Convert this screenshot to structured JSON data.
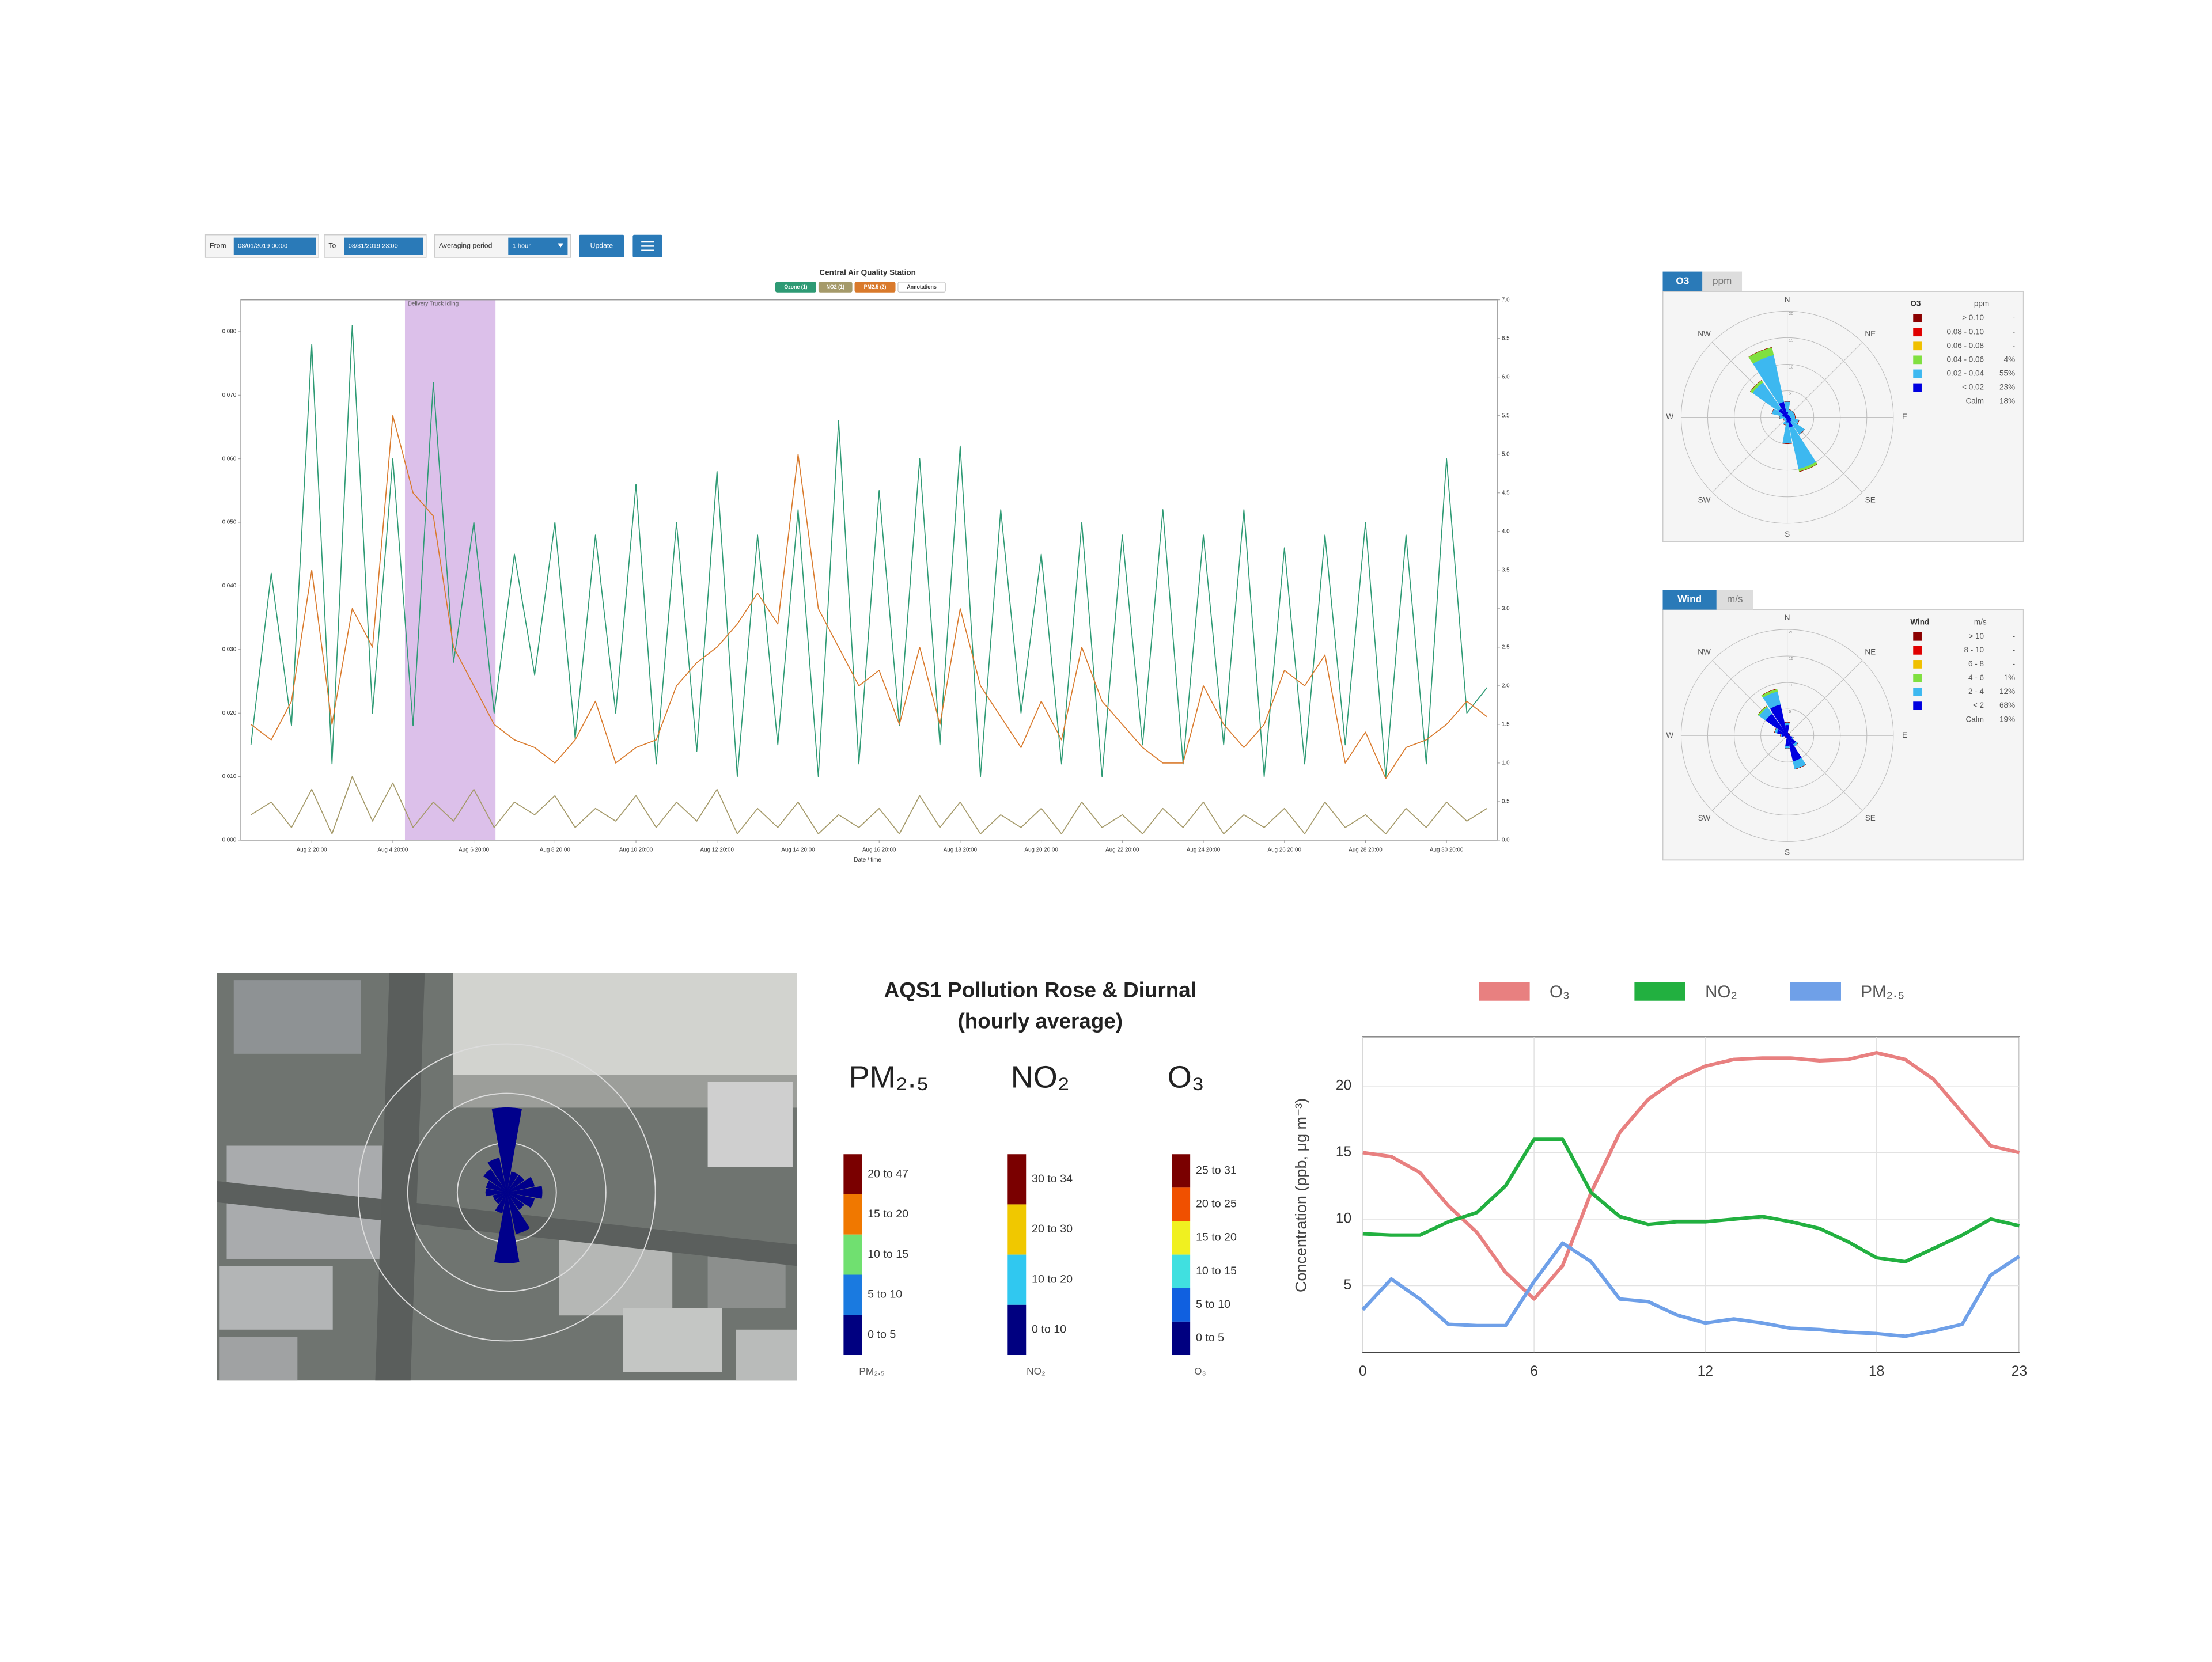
{
  "controls": {
    "from_label": "From",
    "from_value": "08/01/2019 00:00",
    "to_label": "To",
    "to_value": "08/31/2019 23:00",
    "averaging_label": "Averaging period",
    "averaging_value": "1 hour",
    "update": "Update"
  },
  "chart_data": [
    {
      "type": "line",
      "title": "Central Air Quality Station",
      "x_title": "Date / time",
      "annotation_legend": "Annotations",
      "annotation": "Delivery Truck Idling",
      "categories": [
        null,
        null,
        null,
        "Aug 2 20:00",
        null,
        null,
        null,
        "Aug 4 20:00",
        null,
        null,
        null,
        "Aug 6 20:00",
        null,
        null,
        null,
        "Aug 8 20:00",
        null,
        null,
        null,
        "Aug 10 20:00",
        null,
        null,
        null,
        "Aug 12 20:00",
        null,
        null,
        null,
        "Aug 14 20:00",
        null,
        null,
        null,
        "Aug 16 20:00",
        null,
        null,
        null,
        "Aug 18 20:00",
        null,
        null,
        null,
        "Aug 20 20:00",
        null,
        null,
        null,
        "Aug 22 20:00",
        null,
        null,
        null,
        "Aug 24 20:00",
        null,
        null,
        null,
        "Aug 26 20:00",
        null,
        null,
        null,
        "Aug 28 20:00",
        null,
        null,
        null,
        "Aug 30 20:00",
        null,
        null
      ],
      "series": [
        {
          "name": "Ozone (1)",
          "color": "#2e9a74",
          "values": [
            0.015,
            0.042,
            0.018,
            0.078,
            0.012,
            0.081,
            0.02,
            0.06,
            0.018,
            0.072,
            0.028,
            0.05,
            0.02,
            0.045,
            0.026,
            0.05,
            0.016,
            0.048,
            0.02,
            0.056,
            0.012,
            0.05,
            0.014,
            0.058,
            0.01,
            0.048,
            0.015,
            0.052,
            0.01,
            0.066,
            0.012,
            0.055,
            0.018,
            0.06,
            0.015,
            0.062,
            0.01,
            0.052,
            0.02,
            0.045,
            0.012,
            0.05,
            0.01,
            0.048,
            0.015,
            0.052,
            0.012,
            0.048,
            0.015,
            0.052,
            0.01,
            0.046,
            0.012,
            0.048,
            0.015,
            0.05,
            0.01,
            0.048,
            0.012,
            0.06,
            0.02,
            0.024
          ]
        },
        {
          "name": "NO2 (1)",
          "color": "#a59a6a",
          "values": [
            0.004,
            0.006,
            0.002,
            0.008,
            0.001,
            0.01,
            0.003,
            0.009,
            0.002,
            0.006,
            0.003,
            0.008,
            0.002,
            0.006,
            0.004,
            0.007,
            0.002,
            0.005,
            0.003,
            0.007,
            0.002,
            0.006,
            0.003,
            0.008,
            0.001,
            0.005,
            0.002,
            0.006,
            0.001,
            0.004,
            0.002,
            0.005,
            0.001,
            0.007,
            0.002,
            0.006,
            0.001,
            0.004,
            0.002,
            0.005,
            0.001,
            0.006,
            0.002,
            0.004,
            0.001,
            0.005,
            0.002,
            0.006,
            0.001,
            0.004,
            0.002,
            0.005,
            0.001,
            0.006,
            0.002,
            0.004,
            0.001,
            0.005,
            0.002,
            0.006,
            0.003,
            0.005
          ]
        },
        {
          "name": "PM2.5 (2)",
          "color": "#d97a2c",
          "axis": "y2",
          "values": [
            1.5,
            1.3,
            1.8,
            3.5,
            1.5,
            3.0,
            2.5,
            5.5,
            4.5,
            4.2,
            2.5,
            2.0,
            1.5,
            1.3,
            1.2,
            1.0,
            1.3,
            1.8,
            1.0,
            1.2,
            1.3,
            2.0,
            2.3,
            2.5,
            2.8,
            3.2,
            2.8,
            5.0,
            3.0,
            2.5,
            2.0,
            2.2,
            1.5,
            2.5,
            1.5,
            3.0,
            2.0,
            1.6,
            1.2,
            1.8,
            1.3,
            2.5,
            1.8,
            1.5,
            1.2,
            1.0,
            1.0,
            2.0,
            1.5,
            1.2,
            1.5,
            2.2,
            2.0,
            2.4,
            1.0,
            1.4,
            0.8,
            1.2,
            1.3,
            1.5,
            1.8,
            1.6
          ]
        }
      ],
      "ylim": [
        0,
        0.085
      ],
      "yticks": [
        {
          "value": 0,
          "label": "0.000"
        },
        {
          "value": 0.01,
          "label": "0.010"
        },
        {
          "value": 0.02,
          "label": "0.020"
        },
        {
          "value": 0.03,
          "label": "0.030"
        },
        {
          "value": 0.04,
          "label": "0.040"
        },
        {
          "value": 0.05,
          "label": "0.050"
        },
        {
          "value": 0.06,
          "label": "0.060"
        },
        {
          "value": 0.07,
          "label": "0.070"
        },
        {
          "value": 0.08,
          "label": "0.080"
        }
      ],
      "y2lim": [
        0,
        7
      ],
      "y2ticks": [
        {
          "value": 0,
          "label": "0.0"
        },
        0.5,
        {
          "value": 1,
          "label": "1.0"
        },
        1.5,
        {
          "value": 2,
          "label": "2.0"
        },
        2.5,
        {
          "value": 3,
          "label": "3.0"
        },
        3.5,
        {
          "value": 4,
          "label": "4.0"
        },
        4.5,
        {
          "value": 5,
          "label": "5.0"
        },
        5.5,
        {
          "value": 6,
          "label": "6.0"
        },
        6.5,
        {
          "value": 7,
          "label": "7.0"
        }
      ],
      "grid": false
    },
    {
      "type": "windrose",
      "tab": "O3",
      "unit": "ppm",
      "legend_title": "O3",
      "legend_unit": "ppm",
      "calm_label": "Calm",
      "calm_share": "18%",
      "categories": [
        "N",
        null,
        "NE",
        null,
        "E",
        null,
        "SE",
        null,
        "S",
        null,
        "SW",
        null,
        "W",
        null,
        "NW",
        null
      ],
      "series": [
        {
          "name": "> 0.10",
          "share": "-",
          "color": "#8b0000",
          "values": [
            0,
            0,
            0,
            0,
            0,
            0,
            0,
            0,
            0,
            0,
            0,
            0,
            0,
            0,
            0,
            0
          ]
        },
        {
          "name": "0.08 - 0.10",
          "share": "-",
          "color": "#e00000",
          "values": [
            0,
            0,
            0,
            0,
            0,
            0,
            0,
            0,
            0,
            0,
            0,
            0,
            0,
            0,
            0,
            0
          ]
        },
        {
          "name": "0.06 - 0.08",
          "share": "-",
          "color": "#f0c000",
          "values": [
            0,
            0,
            0,
            0,
            0,
            0,
            0,
            0,
            0,
            0,
            0,
            0,
            0,
            0,
            0,
            0
          ]
        },
        {
          "name": "0.04 - 0.06",
          "share": "4%",
          "color": "#80e040",
          "values": [
            0,
            0,
            0,
            0,
            0,
            0,
            0,
            0.5,
            0,
            0,
            0,
            0,
            0,
            0,
            0.5,
            1.5
          ]
        },
        {
          "name": "0.02 - 0.04",
          "share": "55%",
          "color": "#3db8f0",
          "values": [
            2,
            1,
            1,
            1,
            1,
            1.5,
            3,
            8,
            4,
            1,
            0.5,
            0.5,
            1,
            2,
            6,
            9
          ]
        },
        {
          "name": "< 0.02",
          "share": "23%",
          "color": "#0000e0",
          "values": [
            1,
            0.5,
            0.5,
            0.5,
            0.5,
            0.8,
            1,
            2,
            1,
            0.5,
            0.3,
            0.3,
            0.5,
            1,
            2,
            3
          ]
        }
      ],
      "rlim": [
        0,
        20
      ],
      "rticks": [
        5,
        10,
        15,
        20
      ]
    },
    {
      "type": "windrose",
      "tab": "Wind",
      "unit": "m/s",
      "legend_title": "Wind",
      "legend_unit": "m/s",
      "calm_label": "Calm",
      "calm_share": "19%",
      "categories": [
        "N",
        null,
        "NE",
        null,
        "E",
        null,
        "SE",
        null,
        "S",
        null,
        "SW",
        null,
        "W",
        null,
        "NW",
        null
      ],
      "series": [
        {
          "name": "> 10",
          "share": "-",
          "color": "#8b0000",
          "values": [
            0,
            0,
            0,
            0,
            0,
            0,
            0,
            0,
            0,
            0,
            0,
            0,
            0,
            0,
            0,
            0
          ]
        },
        {
          "name": "8 - 10",
          "share": "-",
          "color": "#e00000",
          "values": [
            0,
            0,
            0,
            0,
            0,
            0,
            0,
            0,
            0,
            0,
            0,
            0,
            0,
            0,
            0,
            0
          ]
        },
        {
          "name": "6 - 8",
          "share": "-",
          "color": "#f0c000",
          "values": [
            0,
            0,
            0,
            0,
            0,
            0,
            0,
            0,
            0,
            0,
            0,
            0,
            0,
            0,
            0,
            0
          ]
        },
        {
          "name": "4 - 6",
          "share": "1%",
          "color": "#80e040",
          "values": [
            0,
            0,
            0,
            0,
            0,
            0,
            0,
            0,
            0,
            0,
            0,
            0,
            0,
            0,
            0.3,
            0.5
          ]
        },
        {
          "name": "2 - 4",
          "share": "12%",
          "color": "#3db8f0",
          "values": [
            0.5,
            0,
            0,
            0,
            0,
            0.2,
            0.5,
            1.5,
            0.5,
            0,
            0,
            0,
            0.3,
            0.5,
            1.5,
            2.5
          ]
        },
        {
          "name": "< 2",
          "share": "68%",
          "color": "#0000e0",
          "values": [
            2,
            0.5,
            0.5,
            0.5,
            0.5,
            1,
            2,
            5,
            2,
            0.5,
            0.5,
            0.5,
            1,
            2,
            5,
            6
          ]
        }
      ],
      "rlim": [
        0,
        20
      ],
      "rticks": [
        5,
        10,
        15,
        20
      ]
    },
    {
      "type": "windrose",
      "color": "#00008b",
      "values": [
        12,
        3,
        3,
        4,
        5,
        4,
        3,
        6,
        10,
        3,
        2,
        2,
        3,
        3,
        4,
        5
      ],
      "rlim": [
        0,
        14
      ]
    },
    {
      "type": "line",
      "y_title": "Concentration (ppb, μg m⁻³)",
      "x": [
        0,
        1,
        2,
        3,
        4,
        5,
        6,
        7,
        8,
        9,
        10,
        11,
        12,
        13,
        14,
        15,
        16,
        17,
        18,
        19,
        20,
        21,
        22,
        23
      ],
      "series": [
        {
          "name": "O₃",
          "color": "#e88080",
          "values": [
            15,
            14.7,
            13.5,
            11,
            9,
            6,
            4,
            6.5,
            12,
            16.5,
            19,
            20.5,
            21.5,
            22,
            22.1,
            22.1,
            21.9,
            22,
            22.5,
            22,
            20.5,
            18,
            15.5,
            15
          ]
        },
        {
          "name": "NO₂",
          "color": "#22b040",
          "values": [
            8.9,
            8.8,
            8.8,
            9.8,
            10.5,
            12.5,
            16,
            16,
            12,
            10.2,
            9.6,
            9.8,
            9.8,
            10,
            10.2,
            9.8,
            9.3,
            8.3,
            7.1,
            6.8,
            7.8,
            8.8,
            10,
            9.5
          ]
        },
        {
          "name": "PM₂.₅",
          "color": "#6fa0e8",
          "values": [
            3.2,
            5.5,
            4,
            2.1,
            2,
            2,
            5.3,
            8.2,
            6.8,
            4,
            3.8,
            2.8,
            2.2,
            2.5,
            2.2,
            1.8,
            1.7,
            1.5,
            1.4,
            1.2,
            1.6,
            2.1,
            5.8,
            7.2
          ]
        }
      ],
      "xlim": [
        0,
        23
      ],
      "xticks": [
        0,
        6,
        12,
        18,
        23
      ],
      "ylim": [
        0,
        23.7
      ],
      "yticks": [
        5,
        10,
        15,
        20
      ],
      "grid": true
    }
  ],
  "pollution_panel": {
    "title": "AQS1 Pollution Rose & Diurnal",
    "subtitle": "(hourly average)",
    "scales": [
      {
        "header": "PM₂.₅",
        "caption": "PM₂.₅",
        "bins": [
          {
            "label": "20 to 47",
            "color": "#7a0000"
          },
          {
            "label": "15 to 20",
            "color": "#f07800"
          },
          {
            "label": "10 to 15",
            "color": "#70e070"
          },
          {
            "label": "5 to 10",
            "color": "#1a7ae0"
          },
          {
            "label": "0 to 5",
            "color": "#000080"
          }
        ]
      },
      {
        "header": "NO₂",
        "caption": "NO₂",
        "bins": [
          {
            "label": "30 to 34",
            "color": "#7a0000"
          },
          {
            "label": "20 to 30",
            "color": "#f0c800"
          },
          {
            "label": "10 to 20",
            "color": "#30c8f0"
          },
          {
            "label": "0 to 10",
            "color": "#000080"
          }
        ]
      },
      {
        "header": "O₃",
        "caption": "O₃",
        "bins": [
          {
            "label": "25 to 31",
            "color": "#7a0000"
          },
          {
            "label": "20 to 25",
            "color": "#f05000"
          },
          {
            "label": "15 to 20",
            "color": "#f0f020"
          },
          {
            "label": "10 to 15",
            "color": "#40e0e0"
          },
          {
            "label": "5 to 10",
            "color": "#1060e0"
          },
          {
            "label": "0 to 5",
            "color": "#000080"
          }
        ]
      }
    ]
  }
}
